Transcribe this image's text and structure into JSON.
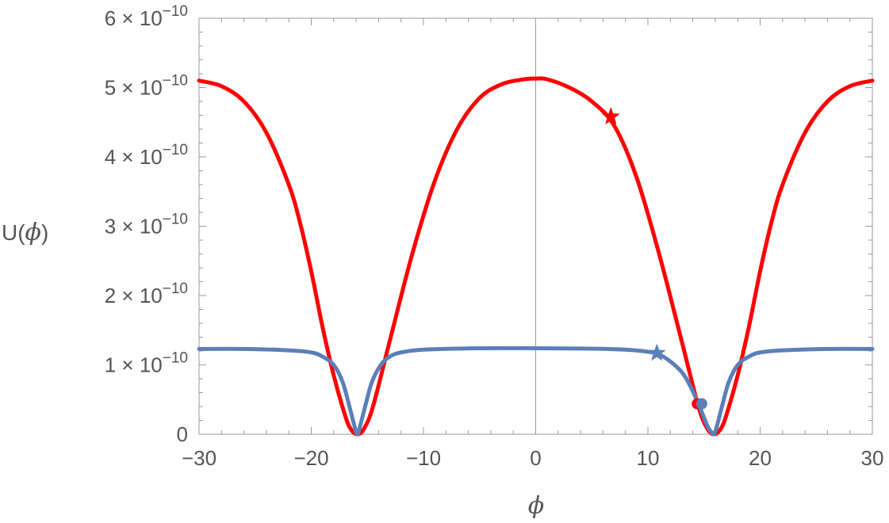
{
  "chart_data": {
    "type": "line",
    "title": "",
    "xlabel": "ϕ",
    "ylabel_prefix": "U(",
    "ylabel_var": "ϕ",
    "ylabel_suffix": ")",
    "xlim": [
      -30,
      30
    ],
    "ylim": [
      0,
      6e-10
    ],
    "x_ticks": [
      {
        "value": -30,
        "label": "−30"
      },
      {
        "value": -20,
        "label": "−20"
      },
      {
        "value": -10,
        "label": "−10"
      },
      {
        "value": 0,
        "label": "0"
      },
      {
        "value": 10,
        "label": "10"
      },
      {
        "value": 20,
        "label": "20"
      },
      {
        "value": 30,
        "label": "30"
      }
    ],
    "y_ticks": [
      {
        "value": 0,
        "mantissa": "0",
        "exponent": ""
      },
      {
        "value": 1e-10,
        "mantissa": "1 × 10",
        "exponent": "−10"
      },
      {
        "value": 2e-10,
        "mantissa": "2 × 10",
        "exponent": "−10"
      },
      {
        "value": 3e-10,
        "mantissa": "3 × 10",
        "exponent": "−10"
      },
      {
        "value": 4e-10,
        "mantissa": "4 × 10",
        "exponent": "−10"
      },
      {
        "value": 5e-10,
        "mantissa": "5 × 10",
        "exponent": "−10"
      },
      {
        "value": 6e-10,
        "mantissa": "6 × 10",
        "exponent": "−10"
      }
    ],
    "grid": false,
    "legend": "none",
    "series": [
      {
        "color": "#ff0000",
        "x": [
          -30,
          -28,
          -26,
          -24,
          -22,
          -21,
          -20,
          -19,
          -18,
          -17,
          -16.5,
          -15.9,
          -15.3,
          -14.5,
          -13,
          -11,
          -9,
          -7,
          -5,
          -3,
          -1,
          0,
          1,
          3,
          5,
          7,
          9,
          11,
          13,
          14.5,
          15.3,
          15.9,
          16.5,
          17,
          18,
          19,
          20,
          21,
          22,
          24,
          26,
          28,
          30
        ],
        "y": [
          5.1e-10,
          5.02e-10,
          4.8e-10,
          4.35e-10,
          3.6e-10,
          3.05e-10,
          2.35e-10,
          1.55e-10,
          8.5e-11,
          2.8e-11,
          8e-12,
          0,
          8e-12,
          4e-11,
          1.35e-10,
          2.6e-10,
          3.65e-10,
          4.4e-10,
          4.85e-10,
          5.05e-10,
          5.12e-10,
          5.13e-10,
          5.12e-10,
          5e-10,
          4.8e-10,
          4.45e-10,
          3.7e-10,
          2.6e-10,
          1.35e-10,
          4e-11,
          8e-12,
          0,
          8e-12,
          2.8e-11,
          8.5e-11,
          1.55e-10,
          2.35e-10,
          3.05e-10,
          3.6e-10,
          4.35e-10,
          4.8e-10,
          5.02e-10,
          5.1e-10
        ]
      },
      {
        "color": "#5b7fb8",
        "x": [
          -30,
          -26,
          -22,
          -20,
          -19,
          -18,
          -17.2,
          -16.6,
          -16.2,
          -15.9,
          -15.6,
          -15.2,
          -14.6,
          -13.8,
          -13,
          -12,
          -10,
          -5,
          0,
          5,
          8,
          10,
          11,
          12,
          13,
          13.6,
          14.2,
          14.8,
          15.3,
          15.6,
          15.9,
          16.2,
          16.6,
          17.2,
          18,
          19,
          20,
          22,
          26,
          30
        ],
        "y": [
          1.23e-10,
          1.23e-10,
          1.21e-10,
          1.18e-10,
          1.12e-10,
          1e-10,
          7.5e-11,
          4e-11,
          1.5e-11,
          0,
          1.5e-11,
          4e-11,
          7.5e-11,
          1e-10,
          1.12e-10,
          1.18e-10,
          1.22e-10,
          1.24e-10,
          1.24e-10,
          1.235e-10,
          1.22e-10,
          1.19e-10,
          1.15e-10,
          1.05e-10,
          9e-11,
          7.5e-11,
          5.5e-11,
          3.2e-11,
          1.2e-11,
          4e-12,
          0,
          1.5e-11,
          4e-11,
          7.5e-11,
          1e-10,
          1.12e-10,
          1.18e-10,
          1.21e-10,
          1.23e-10,
          1.23e-10
        ]
      }
    ],
    "markers": [
      {
        "shape": "star",
        "color": "#ff0000",
        "x": 6.7,
        "y": 4.58e-10
      },
      {
        "shape": "dot",
        "color": "#ff0000",
        "x": 14.4,
        "y": 4.4e-11
      },
      {
        "shape": "star",
        "color": "#5b7fb8",
        "x": 10.8,
        "y": 1.17e-10
      },
      {
        "shape": "dot",
        "color": "#5b7fb8",
        "x": 14.8,
        "y": 4.4e-11
      }
    ]
  }
}
